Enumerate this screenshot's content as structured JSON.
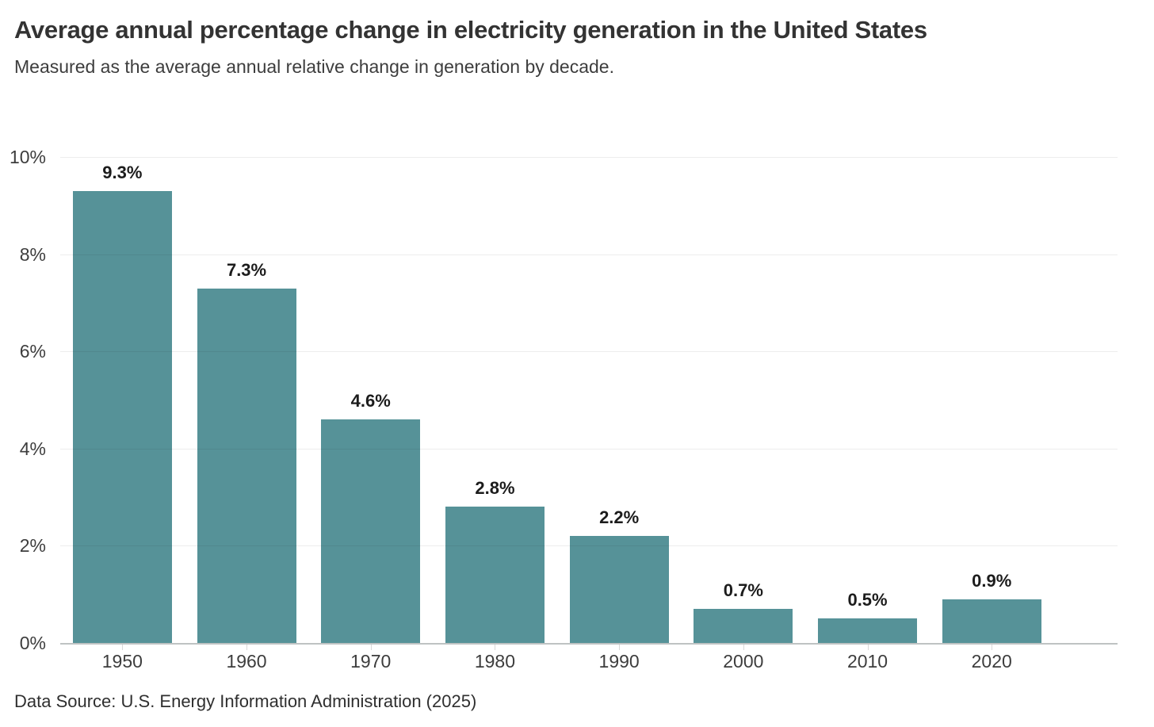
{
  "header": {
    "title": "Average annual percentage change in electricity generation in the United States",
    "subtitle": "Measured as the average annual relative change in generation by decade."
  },
  "footer": {
    "source": "Data Source: U.S. Energy Information Administration (2025)"
  },
  "chart_data": {
    "type": "bar",
    "title": "Average annual percentage change in electricity generation in the United States",
    "subtitle": "Measured as the average annual relative change in generation by decade.",
    "categories": [
      "1950",
      "1960",
      "1970",
      "1980",
      "1990",
      "2000",
      "2010",
      "2020"
    ],
    "values": [
      9.3,
      7.3,
      4.6,
      2.8,
      2.2,
      0.7,
      0.5,
      0.9
    ],
    "value_labels": [
      "9.3%",
      "7.3%",
      "4.6%",
      "2.8%",
      "2.2%",
      "0.7%",
      "0.5%",
      "0.9%"
    ],
    "y_ticks": [
      0,
      2,
      4,
      6,
      8,
      10
    ],
    "y_tick_labels": [
      "0%",
      "2%",
      "4%",
      "6%",
      "8%",
      "10%"
    ],
    "ylim": [
      0,
      10
    ],
    "xlabel": "",
    "ylabel": "",
    "grid": true,
    "legend": "none",
    "colors": {
      "bar": "#569298",
      "gridline": "rgba(20,20,20,0.08)",
      "axis_line": "#bfc3c3",
      "tick_mark": "#d9d9d9",
      "value_label": "#1c1c1c",
      "tick_label": "#3d3d3d",
      "title": "#333333",
      "subtitle": "#3d3d3d",
      "source": "#2f2f2f"
    }
  }
}
